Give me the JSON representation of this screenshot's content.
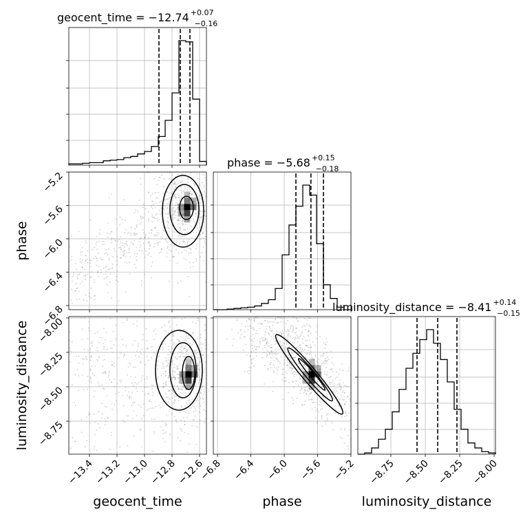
{
  "chart_data": {
    "type": "corner",
    "parameters": [
      {
        "name": "geocent_time",
        "range": [
          -13.55,
          -12.55
        ],
        "ticks": [
          -13.4,
          -13.2,
          -13.0,
          -12.8,
          -12.6
        ],
        "tick_labels": [
          "−13.4",
          "−13.2",
          "−13.0",
          "−12.8",
          "−12.6"
        ],
        "median": -12.74,
        "plus": 0.07,
        "minus": 0.16,
        "title": {
          "main": "geocent_time = −12.74",
          "sup": "+0.07",
          "sub": "−0.16"
        },
        "quantile_lines": [
          -12.895,
          -12.74,
          -12.67
        ],
        "hist_density": [
          0.01,
          0.01,
          0.015,
          0.02,
          0.02,
          0.035,
          0.04,
          0.045,
          0.06,
          0.07,
          0.09,
          0.11,
          0.15,
          0.23,
          0.36,
          0.58,
          1.0,
          0.99,
          0.53,
          0.03
        ]
      },
      {
        "name": "phase",
        "range": [
          -6.85,
          -5.2
        ],
        "ticks": [
          -6.8,
          -6.4,
          -6.0,
          -5.6,
          -5.2
        ],
        "tick_labels": [
          "−6.8",
          "−6.4",
          "−6.0",
          "−5.6",
          "−5.2"
        ],
        "median": -5.68,
        "plus": 0.15,
        "minus": 0.18,
        "title": {
          "main": "phase = −5.68",
          "sup": "+0.15",
          "sub": "−0.18"
        },
        "quantile_lines": [
          -5.86,
          -5.68,
          -5.53
        ],
        "hist_density": [
          0.0,
          0.0,
          0.005,
          0.01,
          0.015,
          0.02,
          0.03,
          0.05,
          0.08,
          0.17,
          0.44,
          0.68,
          0.83,
          1.0,
          0.92,
          0.53,
          0.2,
          0.09,
          0.02,
          0.0
        ]
      },
      {
        "name": "luminosity_distance",
        "range": [
          -8.99,
          -7.99
        ],
        "ticks": [
          -8.75,
          -8.5,
          -8.25,
          -8.0
        ],
        "tick_labels": [
          "−8.75",
          "−8.50",
          "−8.25",
          "−8.00"
        ],
        "median": -8.41,
        "plus": 0.14,
        "minus": 0.15,
        "title": {
          "main": "luminosity_distance = −8.41",
          "sup": "+0.14",
          "sub": "−0.15"
        },
        "quantile_lines": [
          -8.56,
          -8.41,
          -8.27
        ],
        "hist_density": [
          0.0,
          0.01,
          0.05,
          0.12,
          0.2,
          0.34,
          0.52,
          0.69,
          0.81,
          0.92,
          1.0,
          0.89,
          0.76,
          0.58,
          0.36,
          0.2,
          0.09,
          0.05,
          0.02,
          0.01
        ]
      }
    ],
    "pair_panels": [
      {
        "x": "geocent_time",
        "y": "phase",
        "y_ticks": [
          -5.2,
          -5.6,
          -6.0,
          -6.4,
          -6.8
        ],
        "y_range": [
          -6.85,
          -5.2
        ],
        "mode": [
          -12.69,
          -5.62
        ],
        "contour_levels": [
          {
            "center": [
              -12.72,
              -5.67
            ],
            "rx": 0.15,
            "ry": 0.43
          },
          {
            "center": [
              -12.71,
              -5.65
            ],
            "rx": 0.105,
            "ry": 0.3
          },
          {
            "center": [
              -12.695,
              -5.63
            ],
            "rx": 0.05,
            "ry": 0.14
          }
        ]
      },
      {
        "x": "geocent_time",
        "y": "luminosity_distance",
        "y_ticks": [
          -8.0,
          -8.25,
          -8.5,
          -8.75
        ],
        "y_range": [
          -8.99,
          -7.99
        ],
        "mode": [
          -12.68,
          -8.41
        ],
        "contour_levels": [
          {
            "center": [
              -12.75,
              -8.38
            ],
            "rx": 0.17,
            "ry": 0.29
          },
          {
            "center": [
              -12.72,
              -8.38
            ],
            "rx": 0.095,
            "ry": 0.2
          },
          {
            "center": [
              -12.68,
              -8.4
            ],
            "rx": 0.045,
            "ry": 0.12
          }
        ]
      },
      {
        "x": "phase",
        "y": "luminosity_distance",
        "y_ticks": [
          -8.0,
          -8.25,
          -8.5,
          -8.75
        ],
        "y_range": [
          -8.99,
          -7.99
        ],
        "mode": [
          -5.67,
          -8.41
        ],
        "contour_levels": [
          {
            "center": [
              -5.7,
              -8.41
            ],
            "rx": 0.19,
            "ry": 0.3,
            "tilt": 0.95
          },
          {
            "center": [
              -5.69,
              -8.41
            ],
            "rx": 0.125,
            "ry": 0.2,
            "tilt": 0.95
          },
          {
            "center": [
              -5.67,
              -8.41
            ],
            "rx": 0.065,
            "ry": 0.12,
            "tilt": 0.95
          }
        ]
      }
    ],
    "grid": true,
    "colors": {
      "line": "#000000",
      "grid": "#b0b0b0",
      "scatter": "#8c8c8c"
    }
  }
}
